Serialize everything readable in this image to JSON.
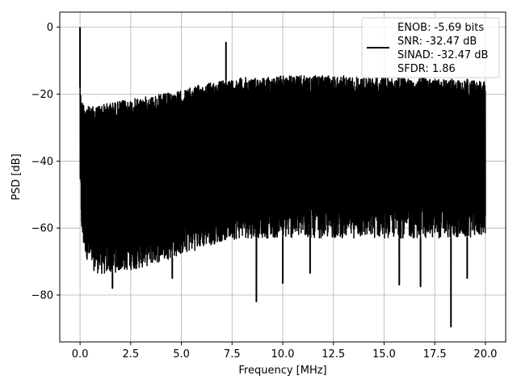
{
  "chart_data": {
    "type": "line",
    "title": "",
    "xlabel": "Frequency [MHz]",
    "ylabel": "PSD [dB]",
    "xlim": [
      -1.0,
      21.0
    ],
    "ylim": [
      -94.0,
      4.5
    ],
    "xticks": [
      0.0,
      2.5,
      5.0,
      7.5,
      10.0,
      12.5,
      15.0,
      17.5,
      20.0
    ],
    "xtick_labels": [
      "0.0",
      "2.5",
      "5.0",
      "7.5",
      "10.0",
      "12.5",
      "15.0",
      "17.5",
      "20.0"
    ],
    "yticks": [
      0,
      -20,
      -40,
      -60,
      -80
    ],
    "ytick_labels": [
      "0",
      "−20",
      "−40",
      "−60",
      "−80"
    ],
    "grid": true,
    "legend_placement": "upper-right",
    "series": [
      {
        "color": "#000000",
        "description_envelope": {
          "x": [
            0.0,
            0.1,
            0.5,
            1.0,
            2.0,
            3.0,
            4.0,
            5.0,
            6.0,
            7.0,
            8.0,
            9.0,
            10.0,
            11.0,
            12.0,
            13.0,
            14.0,
            15.0,
            16.0,
            17.0,
            18.0,
            19.0,
            20.0
          ],
          "upper": [
            -18,
            -22,
            -24,
            -23,
            -22,
            -21,
            -20,
            -19,
            -17,
            -16,
            -15,
            -15,
            -14.5,
            -14.5,
            -14.5,
            -14.5,
            -15,
            -15,
            -15,
            -15,
            -15.5,
            -15.5,
            -16
          ],
          "lower": [
            -48,
            -65,
            -72,
            -74,
            -73,
            -72,
            -70,
            -68,
            -66,
            -64,
            -63,
            -63,
            -63,
            -63,
            -63,
            -63,
            -63,
            -63,
            -63,
            -63,
            -63,
            -63,
            -62
          ]
        },
        "peaks": [
          {
            "x": 0.0,
            "y": 0.0
          },
          {
            "x": 7.2,
            "y": -4.5
          }
        ],
        "dips": [
          {
            "x": 1.6,
            "y": -78.0
          },
          {
            "x": 4.55,
            "y": -75.0
          },
          {
            "x": 8.7,
            "y": -82.0
          },
          {
            "x": 10.0,
            "y": -76.5
          },
          {
            "x": 11.35,
            "y": -73.5
          },
          {
            "x": 15.75,
            "y": -77.0
          },
          {
            "x": 16.8,
            "y": -77.5
          },
          {
            "x": 18.3,
            "y": -89.5
          },
          {
            "x": 19.1,
            "y": -75.0
          }
        ]
      }
    ],
    "legend": {
      "entries": [
        "ENOB: -5.69 bits",
        "SNR: -32.47 dB",
        "SINAD: -32.47 dB",
        "SFDR: 1.86"
      ]
    }
  }
}
